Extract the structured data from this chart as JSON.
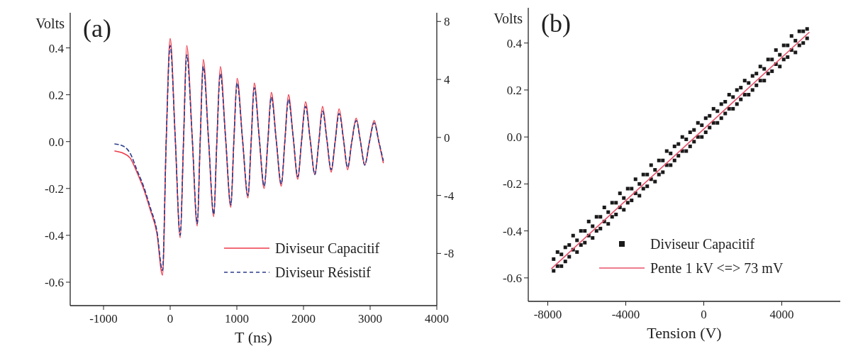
{
  "chart_data": [
    {
      "type": "line",
      "title": "(a)",
      "xlabel": "T (ns)",
      "ylabel": "Volts",
      "legend": "bottom right",
      "xlim": [
        -1500,
        4000
      ],
      "xticks": [
        -1000,
        0,
        1000,
        2000,
        3000,
        4000
      ],
      "ylim": [
        -0.7,
        0.55
      ],
      "yticks": [
        {
          "value": -0.6,
          "label": "-0.6"
        },
        {
          "value": -0.4,
          "label": "-0.4"
        },
        {
          "value": -0.2,
          "label": "-0.2"
        },
        {
          "value": 0,
          "label": "0.0"
        },
        {
          "value": 0.2,
          "label": "0.2"
        },
        {
          "value": 0.4,
          "label": "0.4"
        }
      ],
      "y2lim": [
        -11.6,
        8.6
      ],
      "y2ticks": [
        -8,
        -4,
        0,
        4,
        8
      ],
      "x": [
        -830,
        -700,
        -600,
        -500,
        -400,
        -300,
        -200,
        -115,
        -60,
        0,
        75,
        150,
        200,
        248,
        330,
        406,
        450,
        496,
        575,
        654,
        700,
        752,
        830,
        910,
        955,
        1004,
        1085,
        1167,
        1215,
        1261,
        1335,
        1410,
        1465,
        1517,
        1590,
        1667,
        1720,
        1774,
        1845,
        1915,
        1970,
        2030,
        2100,
        2171,
        2230,
        2286,
        2350,
        2415,
        2475,
        2534,
        2600,
        2662,
        2725,
        2791,
        2855,
        2919,
        2990,
        3060,
        3130,
        3197
      ],
      "series": [
        {
          "name": "Diviseur Capacitif",
          "color": "#ee3a4a",
          "line_style": "solid",
          "values": [
            -0.04,
            -0.05,
            -0.07,
            -0.13,
            -0.2,
            -0.29,
            -0.39,
            -0.57,
            0,
            0.44,
            0.02,
            -0.41,
            0,
            0.41,
            0.02,
            -0.36,
            0,
            0.35,
            0.01,
            -0.32,
            0,
            0.32,
            0.02,
            -0.28,
            0,
            0.27,
            0.01,
            -0.24,
            0,
            0.25,
            0.02,
            -0.2,
            0,
            0.21,
            0.01,
            -0.19,
            0,
            0.2,
            0.02,
            -0.16,
            0,
            0.17,
            0.01,
            -0.14,
            0,
            0.15,
            0.01,
            -0.13,
            0,
            0.14,
            0.01,
            -0.12,
            0,
            0.1,
            0,
            -0.1,
            0,
            0.09,
            0,
            -0.09
          ]
        },
        {
          "name": "Diviseur Résistif",
          "color": "#2c3e8c",
          "line_style": "dashed",
          "values": [
            -0.01,
            -0.02,
            -0.05,
            -0.12,
            -0.19,
            -0.28,
            -0.38,
            -0.55,
            0,
            0.41,
            0.02,
            -0.4,
            0,
            0.37,
            0.02,
            -0.35,
            0,
            0.32,
            0.01,
            -0.31,
            0,
            0.29,
            0.02,
            -0.27,
            0,
            0.25,
            0.01,
            -0.23,
            0,
            0.23,
            0.02,
            -0.19,
            0,
            0.19,
            0.01,
            -0.18,
            0,
            0.18,
            0.02,
            -0.15,
            0,
            0.15,
            0.01,
            -0.14,
            0,
            0.13,
            0.01,
            -0.12,
            0,
            0.12,
            0.01,
            -0.11,
            0,
            0.09,
            0,
            -0.1,
            0,
            0.08,
            0,
            -0.08
          ]
        }
      ]
    },
    {
      "type": "scatter",
      "title": "(b)",
      "xlabel": "Tension (V)",
      "ylabel": "Volts",
      "legend": "bottom right",
      "xlim": [
        -9000,
        7000
      ],
      "xticks": [
        -8000,
        -4000,
        0,
        4000
      ],
      "ylim": [
        -0.7,
        0.55
      ],
      "yticks": [
        {
          "value": -0.6,
          "label": "-0.6"
        },
        {
          "value": -0.4,
          "label": "-0.4"
        },
        {
          "value": -0.2,
          "label": "-0.2"
        },
        {
          "value": 0,
          "label": "0.0"
        },
        {
          "value": 0.2,
          "label": "0.2"
        },
        {
          "value": 0.4,
          "label": "0.4"
        }
      ],
      "series": [
        {
          "name": "Diviseur Capacitif",
          "marker": "square",
          "color": "#1a1a1a",
          "x": [
            -7700,
            -7700,
            -7500,
            -7500,
            -7300,
            -7300,
            -7100,
            -7100,
            -6900,
            -6900,
            -6700,
            -6700,
            -6500,
            -6500,
            -6300,
            -6300,
            -6100,
            -6100,
            -5900,
            -5900,
            -5700,
            -5700,
            -5500,
            -5500,
            -5300,
            -5300,
            -5100,
            -5100,
            -4900,
            -4900,
            -4700,
            -4700,
            -4500,
            -4500,
            -4300,
            -4300,
            -4100,
            -4100,
            -3900,
            -3900,
            -3700,
            -3700,
            -3500,
            -3500,
            -3300,
            -3300,
            -3100,
            -3100,
            -2900,
            -2900,
            -2700,
            -2700,
            -2500,
            -2500,
            -2300,
            -2300,
            -2100,
            -2100,
            -1900,
            -1900,
            -1700,
            -1700,
            -1500,
            -1500,
            -1300,
            -1300,
            -1100,
            -1100,
            -900,
            -900,
            -700,
            -700,
            -500,
            -500,
            -300,
            -300,
            -100,
            -100,
            100,
            100,
            300,
            300,
            500,
            500,
            700,
            700,
            900,
            900,
            1100,
            1100,
            1300,
            1300,
            1500,
            1500,
            1700,
            1700,
            1900,
            1900,
            2100,
            2100,
            2300,
            2300,
            2500,
            2500,
            2700,
            2700,
            2900,
            2900,
            3100,
            3100,
            3300,
            3300,
            3500,
            3500,
            3700,
            3700,
            3900,
            3900,
            4100,
            4100,
            4300,
            4300,
            4500,
            4500,
            4700,
            4700,
            4900,
            4900,
            5100,
            5100,
            5300,
            5300
          ],
          "values": [
            -0.52,
            -0.57,
            -0.49,
            -0.55,
            -0.5,
            -0.55,
            -0.47,
            -0.53,
            -0.46,
            -0.51,
            -0.42,
            -0.48,
            -0.44,
            -0.49,
            -0.4,
            -0.46,
            -0.4,
            -0.45,
            -0.36,
            -0.42,
            -0.38,
            -0.43,
            -0.34,
            -0.4,
            -0.34,
            -0.39,
            -0.3,
            -0.36,
            -0.32,
            -0.37,
            -0.28,
            -0.34,
            -0.28,
            -0.33,
            -0.24,
            -0.3,
            -0.26,
            -0.31,
            -0.22,
            -0.28,
            -0.22,
            -0.27,
            -0.18,
            -0.24,
            -0.2,
            -0.25,
            -0.16,
            -0.22,
            -0.16,
            -0.21,
            -0.12,
            -0.18,
            -0.14,
            -0.19,
            -0.1,
            -0.16,
            -0.1,
            -0.15,
            -0.06,
            -0.12,
            -0.07,
            -0.12,
            -0.04,
            -0.1,
            -0.03,
            -0.08,
            0.0,
            -0.06,
            -0.01,
            -0.06,
            0.02,
            -0.04,
            0.03,
            -0.02,
            0.06,
            0.0,
            0.05,
            0.0,
            0.08,
            0.02,
            0.09,
            0.04,
            0.12,
            0.06,
            0.11,
            0.06,
            0.14,
            0.08,
            0.15,
            0.1,
            0.18,
            0.12,
            0.17,
            0.12,
            0.2,
            0.14,
            0.21,
            0.16,
            0.24,
            0.18,
            0.23,
            0.18,
            0.26,
            0.2,
            0.27,
            0.22,
            0.3,
            0.24,
            0.29,
            0.24,
            0.33,
            0.27,
            0.33,
            0.28,
            0.37,
            0.31,
            0.35,
            0.3,
            0.39,
            0.33,
            0.39,
            0.34,
            0.43,
            0.37,
            0.41,
            0.36,
            0.45,
            0.39,
            0.45,
            0.4,
            0.46,
            0.42
          ]
        },
        {
          "name": "Pente 1 kV <=> 73 mV",
          "type": "line",
          "color": "#e8506a",
          "line_style": "solid",
          "x": [
            -7800,
            5400
          ],
          "values": [
            -0.56,
            0.445
          ]
        }
      ]
    }
  ]
}
